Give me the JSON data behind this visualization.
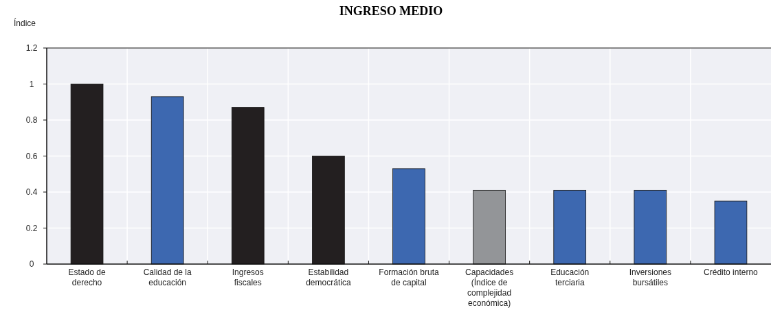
{
  "chart_data": {
    "type": "bar",
    "title": "INGRESO MEDIO",
    "ylabel": "Índice",
    "categories": [
      "Estado de derecho",
      "Calidad de la educación",
      "Ingresos fiscales",
      "Estabilidad democrática",
      "Formación bruta de capital",
      "Capacidades (Índice de complejidad económica)",
      "Educación terciaria",
      "Inversiones bursátiles",
      "Crédito interno"
    ],
    "values": [
      1.0,
      0.93,
      0.87,
      0.6,
      0.53,
      0.41,
      0.41,
      0.41,
      0.35
    ],
    "colors": [
      "#231f20",
      "#3d68b0",
      "#231f20",
      "#231f20",
      "#3d68b0",
      "#939598",
      "#3d68b0",
      "#3d68b0",
      "#3d68b0"
    ],
    "ylim": [
      0,
      1.2
    ],
    "yticks": [
      0,
      0.2,
      0.4,
      0.6,
      0.8,
      1,
      1.2
    ],
    "grid": true
  }
}
